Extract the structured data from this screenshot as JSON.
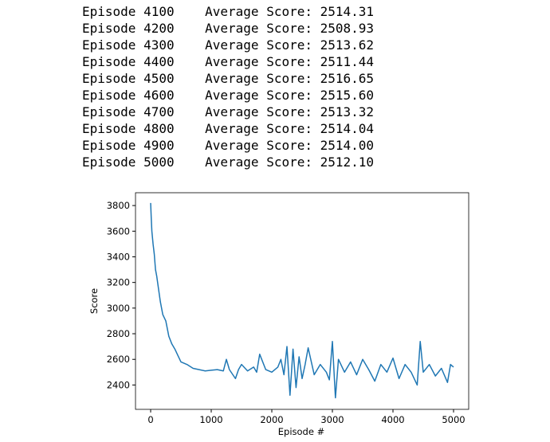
{
  "log_lines": [
    "Episode 4100    Average Score: 2514.31",
    "Episode 4200    Average Score: 2508.93",
    "Episode 4300    Average Score: 2513.62",
    "Episode 4400    Average Score: 2511.44",
    "Episode 4500    Average Score: 2516.65",
    "Episode 4600    Average Score: 2515.60",
    "Episode 4700    Average Score: 2513.32",
    "Episode 4800    Average Score: 2514.04",
    "Episode 4900    Average Score: 2514.00",
    "Episode 5000    Average Score: 2512.10"
  ],
  "chart_data": {
    "type": "line",
    "x_label": "Episode #",
    "y_label": "Score",
    "x": [
      0,
      10,
      20,
      40,
      60,
      80,
      100,
      130,
      160,
      200,
      250,
      300,
      350,
      400,
      450,
      500,
      600,
      700,
      800,
      900,
      1000,
      1100,
      1200,
      1250,
      1300,
      1400,
      1450,
      1500,
      1600,
      1700,
      1750,
      1800,
      1900,
      2000,
      2100,
      2150,
      2200,
      2250,
      2300,
      2350,
      2400,
      2450,
      2500,
      2550,
      2600,
      2700,
      2800,
      2900,
      2950,
      3000,
      3050,
      3100,
      3200,
      3300,
      3400,
      3500,
      3600,
      3700,
      3800,
      3900,
      4000,
      4100,
      4200,
      4300,
      4400,
      4450,
      4500,
      4600,
      4700,
      4800,
      4900,
      4950,
      5000
    ],
    "series": [
      {
        "color": "#1f77b4",
        "values": [
          3820,
          3700,
          3600,
          3500,
          3420,
          3300,
          3250,
          3150,
          3050,
          2950,
          2900,
          2780,
          2720,
          2680,
          2630,
          2580,
          2560,
          2530,
          2520,
          2510,
          2515,
          2520,
          2510,
          2600,
          2520,
          2450,
          2520,
          2560,
          2510,
          2540,
          2500,
          2640,
          2520,
          2500,
          2540,
          2600,
          2480,
          2700,
          2320,
          2680,
          2380,
          2620,
          2450,
          2560,
          2690,
          2480,
          2560,
          2500,
          2440,
          2740,
          2300,
          2600,
          2500,
          2580,
          2480,
          2600,
          2520,
          2430,
          2560,
          2500,
          2610,
          2450,
          2560,
          2500,
          2400,
          2740,
          2500,
          2560,
          2470,
          2530,
          2420,
          2560,
          2540
        ]
      }
    ],
    "xlim": [
      -250,
      5250
    ],
    "xticks": [
      0,
      1000,
      2000,
      3000,
      4000,
      5000
    ],
    "ylim": [
      2210,
      3900
    ],
    "yticks": [
      2400,
      2600,
      2800,
      3000,
      3200,
      3400,
      3600,
      3800
    ]
  }
}
